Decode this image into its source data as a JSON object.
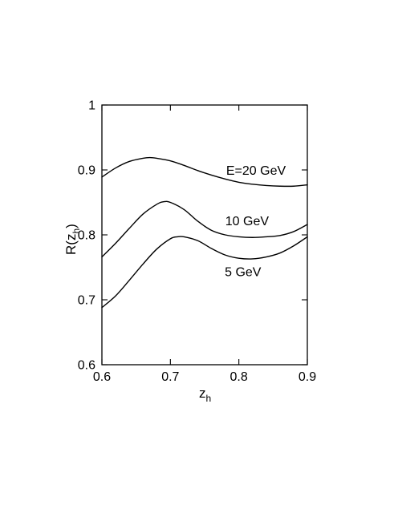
{
  "chart_data": {
    "type": "line",
    "xlabel": "z",
    "xlabel_sub": "h",
    "ylabel": "R(z",
    "ylabel_sub": "h",
    "ylabel_close": ")",
    "xlim": [
      0.6,
      0.9
    ],
    "ylim": [
      0.6,
      1.0
    ],
    "xticks": [
      0.6,
      0.7,
      0.8,
      0.9
    ],
    "xtick_labels": [
      "0.6",
      "0.7",
      "0.8",
      "0.9"
    ],
    "yticks": [
      0.6,
      0.7,
      0.8,
      0.9,
      1.0
    ],
    "ytick_labels": [
      "0.6",
      "0.7",
      "0.8",
      "0.9",
      "1"
    ],
    "grid": false,
    "series": [
      {
        "name": "E=20 GeV",
        "label_at": [
          0.825,
          0.9
        ],
        "x": [
          0.6,
          0.62,
          0.64,
          0.66,
          0.67,
          0.68,
          0.7,
          0.72,
          0.74,
          0.76,
          0.78,
          0.8,
          0.82,
          0.84,
          0.86,
          0.88,
          0.9
        ],
        "y": [
          0.889,
          0.903,
          0.913,
          0.918,
          0.919,
          0.918,
          0.914,
          0.907,
          0.899,
          0.892,
          0.886,
          0.881,
          0.878,
          0.876,
          0.875,
          0.875,
          0.877
        ]
      },
      {
        "name": "10 GeV",
        "label_at": [
          0.812,
          0.822
        ],
        "x": [
          0.6,
          0.62,
          0.64,
          0.66,
          0.68,
          0.69,
          0.7,
          0.72,
          0.74,
          0.76,
          0.78,
          0.8,
          0.82,
          0.84,
          0.86,
          0.88,
          0.9
        ],
        "y": [
          0.766,
          0.787,
          0.81,
          0.832,
          0.847,
          0.851,
          0.85,
          0.839,
          0.821,
          0.807,
          0.8,
          0.797,
          0.796,
          0.797,
          0.799,
          0.805,
          0.816
        ]
      },
      {
        "name": "5 GeV",
        "label_at": [
          0.806,
          0.744
        ],
        "x": [
          0.6,
          0.62,
          0.64,
          0.66,
          0.68,
          0.7,
          0.71,
          0.72,
          0.74,
          0.76,
          0.78,
          0.8,
          0.82,
          0.84,
          0.86,
          0.88,
          0.9
        ],
        "y": [
          0.688,
          0.706,
          0.73,
          0.755,
          0.778,
          0.794,
          0.797,
          0.797,
          0.791,
          0.779,
          0.769,
          0.764,
          0.763,
          0.766,
          0.772,
          0.783,
          0.797
        ]
      }
    ]
  }
}
